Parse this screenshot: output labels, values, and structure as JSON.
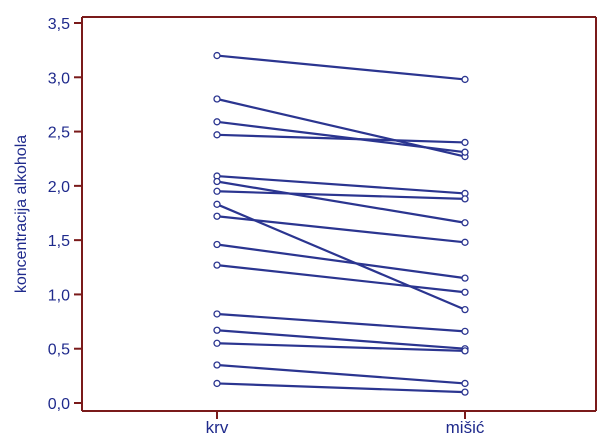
{
  "chart_data": {
    "type": "line",
    "title": "",
    "xlabel": "",
    "ylabel": "koncentracija alkohola",
    "categories": [
      "krv",
      "mišić"
    ],
    "ylim": [
      0,
      3.5
    ],
    "yticks": [
      0,
      0.5,
      1,
      1.5,
      2,
      2.5,
      3,
      3.5
    ],
    "ytick_labels": [
      "0,0",
      "0,5",
      "1,0",
      "1,5",
      "2,0",
      "2,5",
      "3,0",
      "3,5"
    ],
    "grid": false,
    "colors": {
      "line": "#2b3590",
      "axis": "#7a1a1a",
      "text": "#1f2a8c",
      "marker_fill": "#ffffff"
    },
    "pairs": [
      {
        "krv": 3.2,
        "misic": 2.98
      },
      {
        "krv": 2.8,
        "misic": 2.27
      },
      {
        "krv": 2.59,
        "misic": 2.31
      },
      {
        "krv": 2.47,
        "misic": 2.4
      },
      {
        "krv": 2.09,
        "misic": 1.93
      },
      {
        "krv": 2.04,
        "misic": 1.66
      },
      {
        "krv": 1.95,
        "misic": 1.88
      },
      {
        "krv": 1.83,
        "misic": 0.86
      },
      {
        "krv": 1.72,
        "misic": 1.48
      },
      {
        "krv": 1.46,
        "misic": 1.15
      },
      {
        "krv": 1.27,
        "misic": 1.02
      },
      {
        "krv": 0.82,
        "misic": 0.66
      },
      {
        "krv": 0.67,
        "misic": 0.5
      },
      {
        "krv": 0.55,
        "misic": 0.48
      },
      {
        "krv": 0.35,
        "misic": 0.18
      },
      {
        "krv": 0.18,
        "misic": 0.1
      }
    ]
  }
}
